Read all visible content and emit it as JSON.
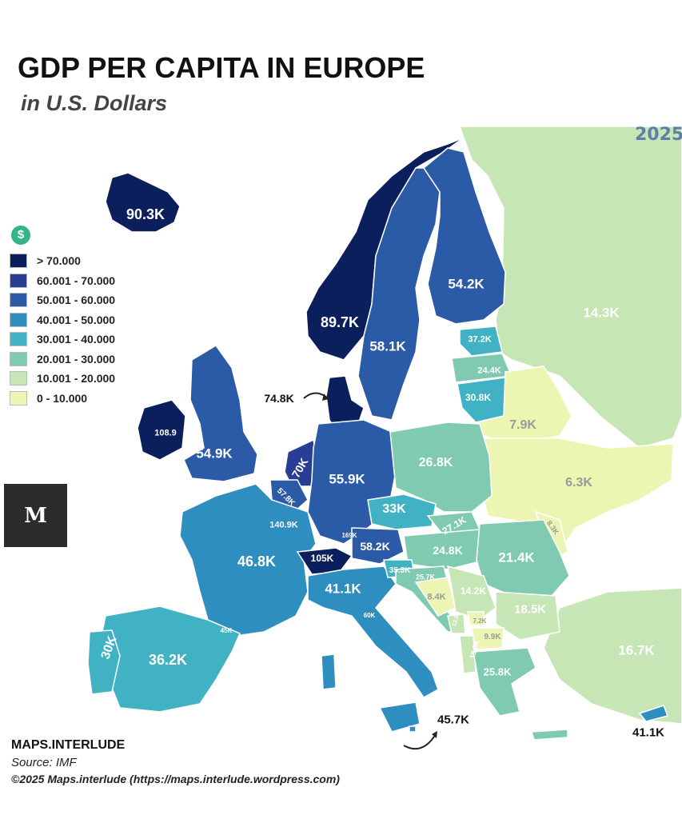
{
  "header": {
    "title": "GDP PER CAPITA IN EUROPE",
    "subtitle": "in U.S. Dollars",
    "year": "2025"
  },
  "legend": {
    "icon": "dollar-icon",
    "items": [
      {
        "label": "> 70.000",
        "color": "#0b1f5c"
      },
      {
        "label": "60.001 - 70.000",
        "color": "#2a3d94"
      },
      {
        "label": "50.001 - 60.000",
        "color": "#2b5aa6"
      },
      {
        "label": "40.001 - 50.000",
        "color": "#2e8ec0"
      },
      {
        "label": "30.001 - 40.000",
        "color": "#41b2c4"
      },
      {
        "label": "20.001 - 30.000",
        "color": "#7fcab0"
      },
      {
        "label": "10.001 - 20.000",
        "color": "#c7e6b5"
      },
      {
        "label": "0 - 10.000",
        "color": "#edf5b3"
      }
    ]
  },
  "logo": {
    "text": "M"
  },
  "regions": [
    {
      "name": "Iceland",
      "label": "90.3K",
      "value": 90.3,
      "color": "#0b1f5c",
      "text_color": "#ffffff"
    },
    {
      "name": "Norway",
      "label": "89.7K",
      "value": 89.7,
      "color": "#0b1f5c",
      "text_color": "#ffffff"
    },
    {
      "name": "Sweden",
      "label": "58.1K",
      "value": 58.1,
      "color": "#2b5aa6",
      "text_color": "#ffffff"
    },
    {
      "name": "Finland",
      "label": "54.2K",
      "value": 54.2,
      "color": "#2b5aa6",
      "text_color": "#ffffff"
    },
    {
      "name": "Russia",
      "label": "14.3K",
      "value": 14.3,
      "color": "#c7e6b5",
      "text_color": "#ffffff"
    },
    {
      "name": "Estonia",
      "label": "37.2K",
      "value": 37.2,
      "color": "#41b2c4",
      "text_color": "#ffffff"
    },
    {
      "name": "Latvia",
      "label": "24.4K",
      "value": 24.4,
      "color": "#7fcab0",
      "text_color": "#ffffff"
    },
    {
      "name": "Lithuania",
      "label": "30.8K",
      "value": 30.8,
      "color": "#41b2c4",
      "text_color": "#ffffff"
    },
    {
      "name": "Denmark",
      "label": "74.8K",
      "value": 74.8,
      "color": "#0b1f5c",
      "text_color": "#111111"
    },
    {
      "name": "Ireland",
      "label": "108.9",
      "value": 108.9,
      "color": "#0b1f5c",
      "text_color": "#ffffff"
    },
    {
      "name": "United Kingdom",
      "label": "54.9K",
      "value": 54.9,
      "color": "#2b5aa6",
      "text_color": "#ffffff"
    },
    {
      "name": "Netherlands",
      "label": "70K",
      "value": 70,
      "color": "#2a3d94",
      "text_color": "#ffffff"
    },
    {
      "name": "Belgium",
      "label": "57.8K",
      "value": 57.8,
      "color": "#2b5aa6",
      "text_color": "#ffffff"
    },
    {
      "name": "Luxembourg",
      "label": "140.9K",
      "value": 140.9,
      "color": "#0b1f5c",
      "text_color": "#ffffff"
    },
    {
      "name": "Germany",
      "label": "55.9K",
      "value": 55.9,
      "color": "#2b5aa6",
      "text_color": "#ffffff"
    },
    {
      "name": "Poland",
      "label": "26.8K",
      "value": 26.8,
      "color": "#7fcab0",
      "text_color": "#ffffff"
    },
    {
      "name": "Belarus",
      "label": "7.9K",
      "value": 7.9,
      "color": "#edf5b3",
      "text_color": "#9a9a9a"
    },
    {
      "name": "Ukraine",
      "label": "6.3K",
      "value": 6.3,
      "color": "#edf5b3",
      "text_color": "#9a9a9a"
    },
    {
      "name": "Moldova",
      "label": "8.3K",
      "value": 8.3,
      "color": "#edf5b3",
      "text_color": "#9a9a9a"
    },
    {
      "name": "Czechia",
      "label": "33K",
      "value": 33,
      "color": "#41b2c4",
      "text_color": "#ffffff"
    },
    {
      "name": "Slovakia",
      "label": "27.1K",
      "value": 27.1,
      "color": "#7fcab0",
      "text_color": "#ffffff"
    },
    {
      "name": "Austria",
      "label": "58.2K",
      "value": 58.2,
      "color": "#2b5aa6",
      "text_color": "#ffffff"
    },
    {
      "name": "Liechtenstein",
      "label": "169K",
      "value": 169,
      "color": "#0b1f5c",
      "text_color": "#ffffff"
    },
    {
      "name": "Switzerland",
      "label": "105K",
      "value": 105,
      "color": "#0b1f5c",
      "text_color": "#ffffff"
    },
    {
      "name": "Hungary",
      "label": "24.8K",
      "value": 24.8,
      "color": "#7fcab0",
      "text_color": "#ffffff"
    },
    {
      "name": "Romania",
      "label": "21.4K",
      "value": 21.4,
      "color": "#7fcab0",
      "text_color": "#ffffff"
    },
    {
      "name": "France",
      "label": "46.8K",
      "value": 46.8,
      "color": "#2e8ec0",
      "text_color": "#ffffff"
    },
    {
      "name": "Slovenia",
      "label": "35.3K",
      "value": 35.3,
      "color": "#41b2c4",
      "text_color": "#ffffff"
    },
    {
      "name": "Croatia",
      "label": "25.7K",
      "value": 25.7,
      "color": "#7fcab0",
      "text_color": "#ffffff"
    },
    {
      "name": "Italy",
      "label": "41.1K",
      "value": 41.1,
      "color": "#2e8ec0",
      "text_color": "#ffffff"
    },
    {
      "name": "San Marino",
      "label": "60K",
      "value": 60,
      "color": "#2b5aa6",
      "text_color": "#ffffff"
    },
    {
      "name": "Monaco",
      "label": "45K",
      "value": 45,
      "color": "#2e8ec0",
      "text_color": "#ffffff"
    },
    {
      "name": "Bosnia and Herzegovina",
      "label": "8.4K",
      "value": 8.4,
      "color": "#edf5b3",
      "text_color": "#9a9a9a"
    },
    {
      "name": "Serbia",
      "label": "14.2K",
      "value": 14.2,
      "color": "#c7e6b5",
      "text_color": "#ffffff"
    },
    {
      "name": "Bulgaria",
      "label": "18.5K",
      "value": 18.5,
      "color": "#c7e6b5",
      "text_color": "#ffffff"
    },
    {
      "name": "Montenegro",
      "label": "13.5K",
      "value": 13.5,
      "color": "#c7e6b5",
      "text_color": "#ffffff"
    },
    {
      "name": "Kosovo",
      "label": "7.2K",
      "value": 7.2,
      "color": "#edf5b3",
      "text_color": "#9a9a9a"
    },
    {
      "name": "North Macedonia",
      "label": "9.9K",
      "value": 9.9,
      "color": "#edf5b3",
      "text_color": "#9a9a9a"
    },
    {
      "name": "Albania",
      "label": "10.5K",
      "value": 10.5,
      "color": "#c7e6b5",
      "text_color": "#ffffff"
    },
    {
      "name": "Greece",
      "label": "25.8K",
      "value": 25.8,
      "color": "#7fcab0",
      "text_color": "#ffffff"
    },
    {
      "name": "Turkey",
      "label": "16.7K",
      "value": 16.7,
      "color": "#c7e6b5",
      "text_color": "#ffffff"
    },
    {
      "name": "Cyprus",
      "label": "41.1K",
      "value": 41.1,
      "color": "#2e8ec0",
      "text_color": "#111111"
    },
    {
      "name": "Malta",
      "label": "45.7K",
      "value": 45.7,
      "color": "#2e8ec0",
      "text_color": "#111111"
    },
    {
      "name": "Portugal",
      "label": "30K",
      "value": 30,
      "color": "#41b2c4",
      "text_color": "#ffffff"
    },
    {
      "name": "Spain",
      "label": "36.2K",
      "value": 36.2,
      "color": "#41b2c4",
      "text_color": "#ffffff"
    }
  ],
  "credits": {
    "brand": "MAPS.INTERLUDE",
    "source": "Source: IMF",
    "copyright": "©2025 Maps.interlude (https://maps.interlude.wordpress.com)"
  }
}
